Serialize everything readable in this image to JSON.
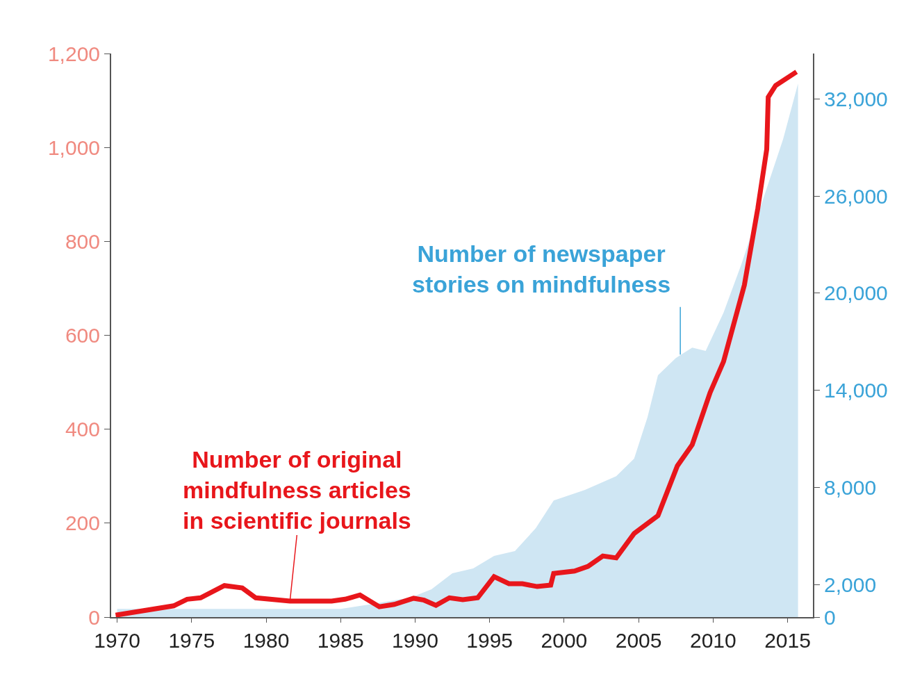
{
  "chart_data": {
    "type": "line",
    "xlim": [
      1969.6,
      2016.7
    ],
    "xticks": [
      1970,
      1975,
      1980,
      1985,
      1990,
      1995,
      2000,
      2005,
      2010,
      2015
    ],
    "ylim": [
      0,
      1200
    ],
    "yticks": [
      0,
      200,
      400,
      600,
      800,
      {
        "value": 1000,
        "label": "1,000"
      },
      {
        "value": 1200,
        "label": "1,200"
      }
    ],
    "y2lim": [
      0,
      34800
    ],
    "y2ticks": [
      0,
      {
        "value": 2000,
        "label": "2,000"
      },
      {
        "value": 8000,
        "label": "8,000"
      },
      {
        "value": 14000,
        "label": "14,000"
      },
      {
        "value": 20000,
        "label": "20,000"
      },
      {
        "value": 26000,
        "label": "26,000"
      },
      {
        "value": 32000,
        "label": "32,000"
      }
    ],
    "series": [
      {
        "type": "area",
        "axis": "y2",
        "color": "#cfe6f3",
        "x": [
          1970,
          1975,
          1980,
          1985,
          1986.9,
          1989.7,
          1991.1,
          1992.5,
          1993.9,
          1995.3,
          1996.7,
          1998.1,
          1999.3,
          2001.4,
          2003.5,
          2004.7,
          2005.6,
          2006.3,
          2007.5,
          2008.6,
          2009.5,
          2010.7,
          2011.9,
          2013.3,
          2014.7,
          2015.7
        ],
        "values": [
          500,
          500,
          500,
          500,
          770,
          1200,
          1720,
          2700,
          3000,
          3780,
          4080,
          5490,
          7200,
          7850,
          8700,
          9780,
          12350,
          14930,
          16000,
          16640,
          16430,
          18790,
          21790,
          25650,
          29510,
          32940
        ]
      },
      {
        "color": "#e8161b",
        "x": [
          1969.9,
          1973.8,
          1974.7,
          1975.6,
          1977.2,
          1978.4,
          1979.3,
          1981.6,
          1984.4,
          1985.3,
          1986.3,
          1987.6,
          1988.6,
          1989.9,
          1990.6,
          1991.4,
          1992.3,
          1993.2,
          1994.2,
          1995.3,
          1996.3,
          1997.2,
          1998.2,
          1999.1,
          1999.3,
          2000.7,
          2001.6,
          2002.6,
          2003.5,
          2004.7,
          2006.3,
          2007.6,
          2008.6,
          2009.8,
          2010.7,
          2012.1,
          2013.0,
          2013.6,
          2013.7,
          2014.2,
          2015.6
        ],
        "values": [
          4,
          24,
          38,
          41,
          67,
          62,
          41,
          34,
          34,
          38,
          47,
          22,
          27,
          40,
          36,
          25,
          41,
          37,
          41,
          86,
          71,
          71,
          65,
          68,
          93,
          98,
          108,
          130,
          126,
          178,
          216,
          322,
          367,
          478,
          544,
          707,
          870,
          996,
          1107,
          1132,
          1161
        ]
      }
    ],
    "annotations": [
      {
        "text": "Number of original\nmindfulness articles\nin scientific journals",
        "x": 1981.6,
        "y": 34
      },
      {
        "text": "Number of newspaper\nstories on mindfulness",
        "x": 2007.8,
        "y": 559
      }
    ]
  }
}
